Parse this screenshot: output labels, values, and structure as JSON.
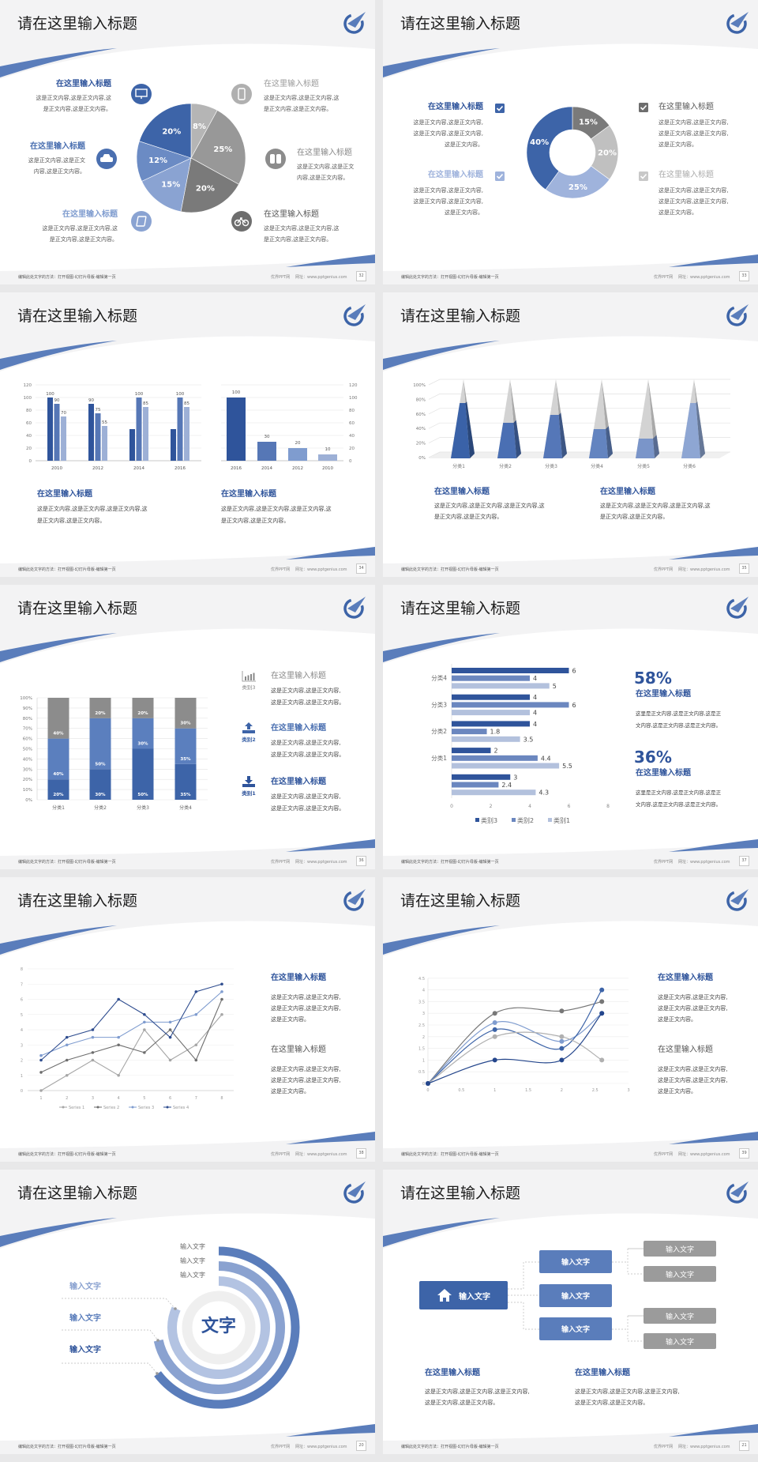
{
  "footer": {
    "left": "编辑此处文字的方法：打开视图-幻灯片母版-编辑第一页",
    "site": "优界PPT网",
    "url": "网址：www.pptgenius.com"
  },
  "colors": {
    "brand_dark": "#2f549b",
    "brand": "#3d64a8",
    "brand_mid": "#5a7dbb",
    "brand_light": "#8aa2d0",
    "brand_pale": "#b3c3e2",
    "gray_dark": "#6e6e6e",
    "gray": "#9b9b9b",
    "gray_light": "#c4c4c4"
  },
  "slides": [
    {
      "number": "32",
      "title": "请在这里输入标题",
      "items": [
        {
          "title": "在这里输入标题",
          "icon": "monitor-icon",
          "body": [
            "这是正文内容,这是正文内容,这",
            "是正文内容,这是正文内容。"
          ]
        },
        {
          "title": "在这里输入标题",
          "icon": "car-icon",
          "body": [
            "这是正文内容,这是正文",
            "内容,这是正文内容。"
          ]
        },
        {
          "title": "在这里输入标题",
          "icon": "book-icon",
          "body": [
            "这是正文内容,这是正文内容,这",
            "是正文内容,这是正文内容。"
          ]
        },
        {
          "title": "在这里输入标题",
          "icon": "phone-icon",
          "body": [
            "这是正文内容,这是正文内容,这",
            "是正文内容,这是正文内容。"
          ]
        },
        {
          "title": "在这里输入标题",
          "icon": "binoculars-icon",
          "body": [
            "这是正文内容,这是正文",
            "内容,这是正文内容。"
          ]
        },
        {
          "title": "在这里输入标题",
          "icon": "bicycle-icon",
          "body": [
            "这是正文内容,这是正文内容,这",
            "是正文内容,这是正文内容。"
          ]
        }
      ]
    },
    {
      "number": "33",
      "title": "请在这里输入标题",
      "items": [
        {
          "title": "在这里输入标题",
          "icon": "checkbox-icon",
          "body": [
            "这是正文内容,这是正文内容,",
            "这是正文内容,这是正文内容,",
            "这是正文内容。"
          ]
        },
        {
          "title": "在这里输入标题",
          "icon": "checkbox-icon",
          "body": [
            "这是正文内容,这是正文内容,",
            "这是正文内容,这是正文内容,",
            "这是正文内容。"
          ]
        },
        {
          "title": "在这里输入标题",
          "icon": "checkbox-icon",
          "body": [
            "这是正文内容,这是正文内容,",
            "这是正文内容,这是正文内容,",
            "这是正文内容。"
          ]
        },
        {
          "title": "在这里输入标题",
          "icon": "checkbox-icon",
          "body": [
            "这是正文内容,这是正文内容,",
            "这是正文内容,这是正文内容,",
            "这是正文内容。"
          ]
        }
      ]
    },
    {
      "number": "34",
      "title": "请在这里输入标题",
      "items": [
        {
          "title": "在这里输入标题",
          "body": [
            "这是正文内容,这是正文内容,这是正文内容,这",
            "是正文内容,这是正文内容。"
          ]
        },
        {
          "title": "在这里输入标题",
          "body": [
            "这是正文内容,这是正文内容,这是正文内容,这",
            "是正文内容,这是正文内容。"
          ]
        }
      ]
    },
    {
      "number": "35",
      "title": "请在这里输入标题",
      "items": [
        {
          "title": "在这里输入标题",
          "body": [
            "这是正文内容,这是正文内容,这是正文内容,这",
            "是正文内容,这是正文内容。"
          ]
        },
        {
          "title": "在这里输入标题",
          "body": [
            "这是正文内容,这是正文内容,这是正文内容,这",
            "是正文内容,这是正文内容。"
          ]
        }
      ]
    },
    {
      "number": "36",
      "title": "请在这里输入标题",
      "items": [
        {
          "label": "类别3",
          "icon": "bar-chart-icon",
          "title": "在这里输入标题",
          "body": [
            "这是正文内容,这是正文内容,",
            "这是正文内容,这是正文内容。"
          ]
        },
        {
          "label": "类别2",
          "icon": "upload-icon",
          "title": "在这里输入标题",
          "body": [
            "这是正文内容,这是正文内容,",
            "这是正文内容,这是正文内容。"
          ]
        },
        {
          "label": "类别1",
          "icon": "download-icon",
          "title": "在这里输入标题",
          "body": [
            "这是正文内容,这是正文内容,",
            "这是正文内容,这是正文内容。"
          ]
        }
      ]
    },
    {
      "number": "37",
      "title": "请在这里输入标题",
      "items": [
        {
          "stat": "58%",
          "title": "在这里输入标题",
          "body": [
            "这里是正文内容,这是正文内容,这是正",
            "文内容,这是正文内容,这是正文内容。"
          ]
        },
        {
          "stat": "36%",
          "title": "在这里输入标题",
          "body": [
            "这里是正文内容,这是正文内容,这是正",
            "文内容,这是正文内容,这是正文内容。"
          ]
        }
      ]
    },
    {
      "number": "38",
      "title": "请在这里输入标题",
      "items": [
        {
          "title": "在这里输入标题",
          "body": [
            "这是正文内容,这是正文内容,",
            "这是正文内容,这是正文内容,",
            "这是正文内容。"
          ]
        },
        {
          "title": "在这里输入标题",
          "body": [
            "这是正文内容,这是正文内容,",
            "这是正文内容,这是正文内容,",
            "这是正文内容。"
          ]
        }
      ]
    },
    {
      "number": "39",
      "title": "请在这里输入标题",
      "items": [
        {
          "title": "在这里输入标题",
          "body": [
            "这是正文内容,这是正文内容,",
            "这是正文内容,这是正文内容,",
            "这是正文内容。"
          ]
        },
        {
          "title": "在这里输入标题",
          "body": [
            "这是正文内容,这是正文内容,",
            "这是正文内容,这是正文内容,",
            "这是正文内容。"
          ]
        }
      ]
    },
    {
      "number": "20",
      "title": "请在这里输入标题",
      "center": "文字",
      "ring_labels": [
        "输入文字",
        "输入文字",
        "输入文字"
      ],
      "left_labels": [
        "输入文字",
        "输入文字",
        "输入文字"
      ]
    },
    {
      "number": "21",
      "title": "请在这里输入标题",
      "root": "输入文字",
      "branches": [
        "输入文字",
        "输入文字",
        "输入文字"
      ],
      "leaves": [
        "输入文字",
        "输入文字",
        "输入文字",
        "输入文字"
      ],
      "items": [
        {
          "title": "在这里输入标题",
          "body": [
            "这是正文内容,这是正文内容,这是正文内容,",
            "这是正文内容,这是正文内容。"
          ]
        },
        {
          "title": "在这里输入标题",
          "body": [
            "这是正文内容,这是正文内容,这是正文内容,",
            "这是正文内容,这是正文内容。"
          ]
        }
      ]
    }
  ],
  "chart_data": [
    {
      "type": "pie",
      "values": [
        8,
        25,
        20,
        15,
        12,
        20
      ],
      "colors": [
        "#b5b5b5",
        "#989898",
        "#7a7a7a",
        "#8aa3d2",
        "#6b8bc4",
        "#3d64a8"
      ],
      "data_label_suffix": "%"
    },
    {
      "type": "pie",
      "donut": true,
      "values": [
        15,
        20,
        25,
        40
      ],
      "colors": [
        "#7a7a7a",
        "#c0c0c0",
        "#9fb3dc",
        "#3d64a8"
      ],
      "data_label_suffix": "%"
    },
    {
      "type": "bar",
      "categories": [
        "2010",
        "2012",
        "2014",
        "2016"
      ],
      "ylim": [
        0,
        120
      ],
      "yticks": [
        "0",
        "20",
        "40",
        "60",
        "80",
        "100",
        "120"
      ],
      "series": [
        {
          "values": [
            100,
            90,
            50,
            50
          ],
          "labels": [
            "100",
            "90",
            null,
            null
          ],
          "color": "#2f549b"
        },
        {
          "values": [
            90,
            75,
            100,
            100
          ],
          "labels": [
            "90",
            "75",
            "100",
            "100"
          ],
          "color": "#5677b6"
        },
        {
          "values": [
            70,
            55,
            85,
            85
          ],
          "labels": [
            "70",
            "55",
            "85",
            "85"
          ],
          "color": "#9db0d6"
        }
      ],
      "grid": true
    },
    {
      "type": "bar",
      "categories": [
        "2016",
        "2014",
        "2012",
        "2010"
      ],
      "values": [
        100,
        30,
        20,
        10
      ],
      "ylim": [
        0,
        120
      ],
      "yticks": [
        "0",
        "20",
        "40",
        "60",
        "80",
        "100",
        "120"
      ],
      "y_axis_side": "right",
      "colors": [
        "#2f549b",
        "#5677b6",
        "#7f9ccf",
        "#9db0d6"
      ],
      "grid": true
    },
    {
      "type": "bar",
      "style": "3d-pyramid",
      "categories": [
        "分类1",
        "分类2",
        "分类3",
        "分类4",
        "分类5",
        "分类6"
      ],
      "values": [
        70,
        45,
        55,
        37,
        25,
        70
      ],
      "ylim": [
        0,
        100
      ],
      "yticks": [
        "0%",
        "20%",
        "40%",
        "60%",
        "80%",
        "100%"
      ],
      "colors": [
        "#3a62a8",
        "#4a6fb3",
        "#5577b8",
        "#6384c0",
        "#7a95c9",
        "#8ea6d3"
      ],
      "grid": true
    },
    {
      "type": "bar",
      "stacked": true,
      "categories": [
        "分类1",
        "分类2",
        "分类3",
        "分类4"
      ],
      "ylim": [
        0,
        100
      ],
      "yticks": [
        "0%",
        "10%",
        "20%",
        "30%",
        "40%",
        "50%",
        "60%",
        "70%",
        "80%",
        "90%",
        "100%"
      ],
      "series": [
        {
          "values": [
            20,
            30,
            50,
            35
          ],
          "color": "#3d64a8"
        },
        {
          "values": [
            40,
            50,
            30,
            35
          ],
          "color": "#5b7fbe"
        },
        {
          "values": [
            40,
            20,
            20,
            30
          ],
          "color": "#8c8c8c"
        }
      ],
      "data_label_suffix": "%",
      "grid": true
    },
    {
      "type": "bar",
      "orientation": "horizontal",
      "categories": [
        "",
        "分类1",
        "分类2",
        "分类3",
        "分类4"
      ],
      "xlim": [
        0,
        8
      ],
      "xticks": [
        "0",
        "2",
        "4",
        "6",
        "8"
      ],
      "legend": "bottom",
      "series": [
        {
          "name": "类别3",
          "values": [
            3,
            2,
            4,
            4,
            6
          ],
          "color": "#2f549b"
        },
        {
          "name": "类别2",
          "values": [
            2.4,
            4.4,
            1.8,
            6,
            4
          ],
          "color": "#6b87bf"
        },
        {
          "name": "类别1",
          "values": [
            4.3,
            5.5,
            3.5,
            4,
            5
          ],
          "color": "#b3c1dd"
        }
      ]
    },
    {
      "type": "line",
      "x": [
        1,
        2,
        3,
        4,
        5,
        6,
        7,
        8
      ],
      "xticks": [
        "1",
        "2",
        "3",
        "4",
        "5",
        "6",
        "7",
        "8"
      ],
      "ylim": [
        0,
        8
      ],
      "yticks": [
        "0",
        "1",
        "2",
        "3",
        "4",
        "5",
        "6",
        "7",
        "8"
      ],
      "legend": "bottom",
      "grid": true,
      "series": [
        {
          "name": "Series 1",
          "values": [
            0,
            1,
            2,
            1,
            4,
            2,
            3,
            5
          ],
          "color": "#a6a6a6"
        },
        {
          "name": "Series 2",
          "values": [
            1.2,
            2,
            2.5,
            3,
            2.5,
            4,
            2,
            6
          ],
          "color": "#6e6e6e"
        },
        {
          "name": "Series 3",
          "values": [
            2.3,
            3,
            3.5,
            3.5,
            4.5,
            4.5,
            5,
            6.5
          ],
          "color": "#7f9ccf"
        },
        {
          "name": "Series 4",
          "values": [
            2,
            3.5,
            4,
            6,
            5,
            3.5,
            6.5,
            7
          ],
          "color": "#2f4d8f"
        }
      ]
    },
    {
      "type": "scatter",
      "smooth": true,
      "x": [
        0,
        1,
        2,
        2.6
      ],
      "xlim": [
        0,
        3
      ],
      "xticks": [
        "0",
        "0.5",
        "1",
        "1.5",
        "2",
        "2.5",
        "3"
      ],
      "ylim": [
        0,
        4.5
      ],
      "yticks": [
        "0",
        "0.5",
        "1",
        "1.5",
        "2",
        "2.5",
        "3",
        "3.5",
        "4",
        "4.5"
      ],
      "grid": true,
      "series": [
        {
          "values": [
            0,
            3,
            3.1,
            3.5
          ],
          "color": "#777777"
        },
        {
          "values": [
            0,
            2.6,
            1.8,
            3
          ],
          "color": "#7f9ccf"
        },
        {
          "values": [
            0,
            2.3,
            1.5,
            4
          ],
          "color": "#3d64a8"
        },
        {
          "values": [
            0,
            2,
            2,
            1
          ],
          "color": "#b0b0b0"
        },
        {
          "values": [
            0,
            1,
            1,
            3
          ],
          "color": "#24468c"
        }
      ]
    }
  ]
}
